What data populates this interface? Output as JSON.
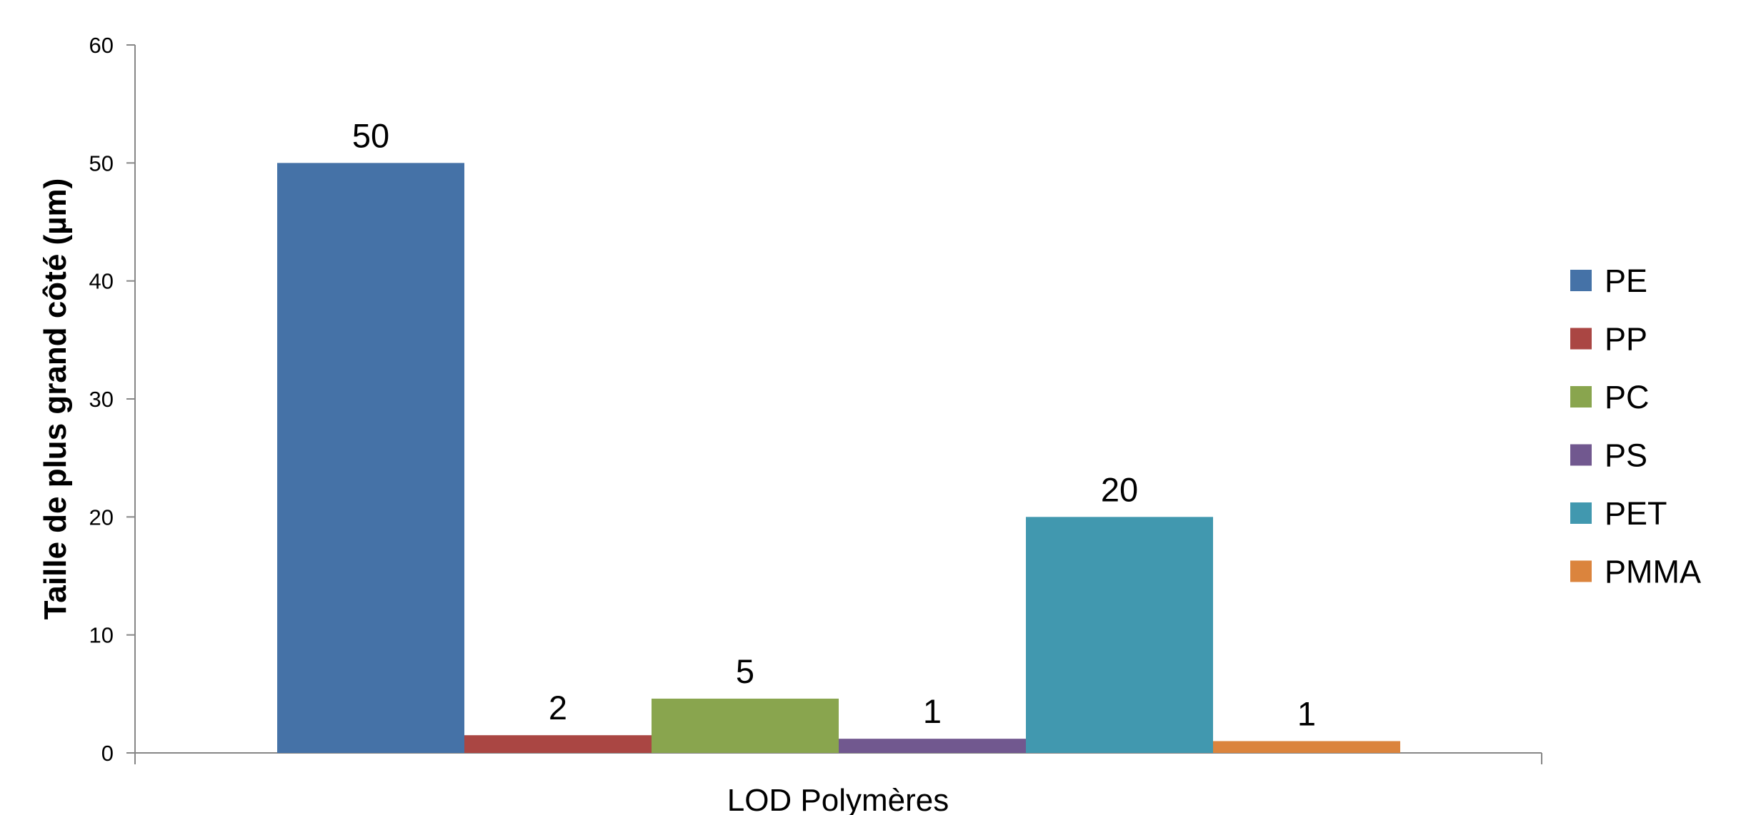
{
  "chart_data": {
    "type": "bar",
    "categories": [
      "LOD Polymères"
    ],
    "series": [
      {
        "name": "PE",
        "values": [
          50
        ],
        "label": "50",
        "color": "#4572A7"
      },
      {
        "name": "PP",
        "values": [
          1.5
        ],
        "label": "2",
        "color": "#AA4643"
      },
      {
        "name": "PC",
        "values": [
          4.6
        ],
        "label": "5",
        "color": "#89A54E"
      },
      {
        "name": "PS",
        "values": [
          1.2
        ],
        "label": "1",
        "color": "#71588F"
      },
      {
        "name": "PET",
        "values": [
          20
        ],
        "label": "20",
        "color": "#4198AF"
      },
      {
        "name": "PMMA",
        "values": [
          1
        ],
        "label": "1",
        "color": "#DB843D"
      }
    ],
    "xlabel": "LOD Polymères",
    "ylabel": "Taille de plus grand côté (µm)",
    "ylim": [
      0,
      60
    ],
    "yticks": [
      "0",
      "10",
      "20",
      "30",
      "40",
      "50",
      "60"
    ],
    "grid": false,
    "legend_position": "right"
  }
}
